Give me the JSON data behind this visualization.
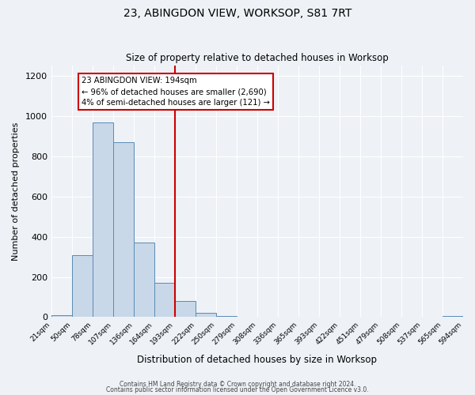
{
  "title": "23, ABINGDON VIEW, WORKSOP, S81 7RT",
  "subtitle": "Size of property relative to detached houses in Worksop",
  "xlabel": "Distribution of detached houses by size in Worksop",
  "ylabel": "Number of detached properties",
  "bin_edges": [
    21,
    50,
    78,
    107,
    136,
    164,
    193,
    222,
    250,
    279,
    308,
    336,
    365,
    393,
    422,
    451,
    479,
    508,
    537,
    565,
    594
  ],
  "bar_heights": [
    10,
    308,
    970,
    870,
    370,
    170,
    80,
    20,
    5,
    0,
    0,
    0,
    0,
    0,
    0,
    0,
    0,
    0,
    0,
    5
  ],
  "bar_color": "#c8d8e8",
  "bar_edgecolor": "#5a8ab5",
  "vline_x": 193,
  "vline_color": "#cc0000",
  "annotation_title": "23 ABINGDON VIEW: 194sqm",
  "annotation_line1": "← 96% of detached houses are smaller (2,690)",
  "annotation_line2": "4% of semi-detached houses are larger (121) →",
  "annotation_box_edgecolor": "#cc0000",
  "annotation_box_facecolor": "#ffffff",
  "ylim": [
    0,
    1250
  ],
  "yticks": [
    0,
    200,
    400,
    600,
    800,
    1000,
    1200
  ],
  "footer1": "Contains HM Land Registry data © Crown copyright and database right 2024.",
  "footer2": "Contains public sector information licensed under the Open Government Licence v3.0.",
  "bg_color": "#eef2f7",
  "plot_bg_color": "#eef2f7"
}
